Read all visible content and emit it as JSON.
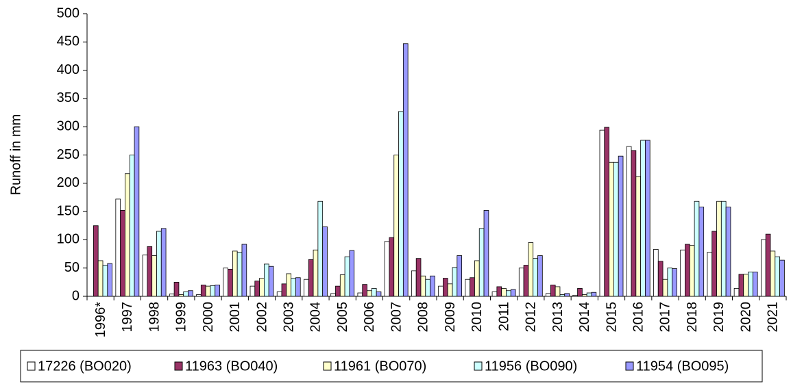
{
  "chart_data": {
    "type": "bar",
    "y_label": "Runoff in mm",
    "categories": [
      "1996*",
      "1997",
      "1998",
      "1999",
      "2000",
      "2001",
      "2002",
      "2003",
      "2004",
      "2005",
      "2006",
      "2007",
      "2008",
      "2009",
      "2010",
      "2011",
      "2012",
      "2013",
      "2014",
      "2015",
      "2016",
      "2017",
      "2018",
      "2019",
      "2020",
      "2021"
    ],
    "series": [
      {
        "name": "17226 (BO020)",
        "color": "#ffffff",
        "values": [
          null,
          172,
          73,
          4,
          3,
          50,
          18,
          8,
          30,
          5,
          6,
          97,
          45,
          18,
          30,
          8,
          50,
          5,
          2,
          294,
          265,
          83,
          82,
          78,
          14,
          100
        ]
      },
      {
        "name": "11963 (BO040)",
        "color": "#993366",
        "values": [
          125,
          152,
          88,
          25,
          20,
          48,
          27,
          22,
          65,
          18,
          21,
          104,
          67,
          32,
          33,
          17,
          55,
          20,
          14,
          299,
          258,
          62,
          92,
          115,
          39,
          110
        ]
      },
      {
        "name": "11961 (BO070)",
        "color": "#ffffcc",
        "values": [
          63,
          217,
          72,
          3,
          18,
          80,
          32,
          40,
          82,
          38,
          10,
          250,
          36,
          22,
          63,
          14,
          95,
          17,
          3,
          237,
          212,
          30,
          90,
          168,
          39,
          80
        ]
      },
      {
        "name": "11956 (BO090)",
        "color": "#ccffff",
        "values": [
          55,
          250,
          115,
          8,
          19,
          78,
          57,
          32,
          168,
          70,
          14,
          327,
          30,
          51,
          120,
          10,
          67,
          3,
          6,
          237,
          276,
          50,
          168,
          168,
          43,
          70
        ]
      },
      {
        "name": "11954 (BO095)",
        "color": "#9999ff",
        "values": [
          58,
          300,
          120,
          10,
          20,
          92,
          53,
          33,
          123,
          81,
          8,
          447,
          36,
          72,
          152,
          12,
          72,
          5,
          7,
          248,
          276,
          49,
          158,
          158,
          43,
          64
        ]
      }
    ],
    "ylim": [
      0,
      500
    ],
    "yticks": [
      0,
      50,
      100,
      150,
      200,
      250,
      300,
      350,
      400,
      450,
      500
    ],
    "grid": false,
    "legend": "bottom"
  }
}
